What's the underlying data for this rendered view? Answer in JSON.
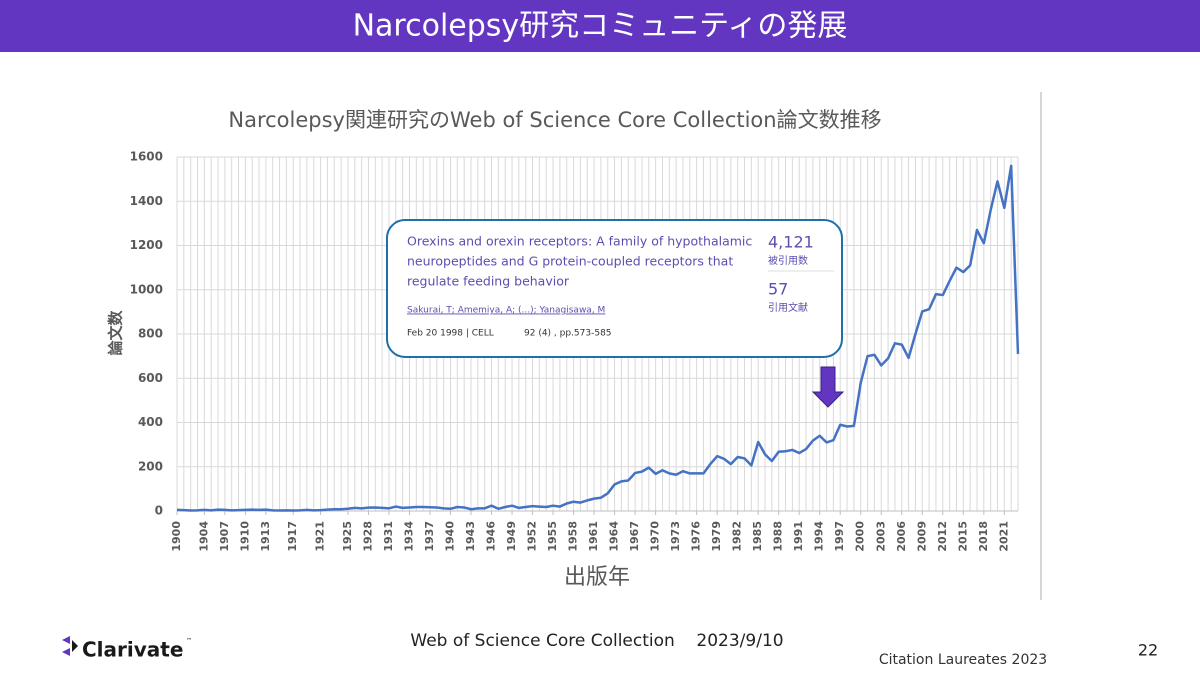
{
  "header": {
    "title": "Narcolepsy研究コミュニティの発展"
  },
  "chart_data": {
    "type": "line",
    "title": "Narcolepsy関連研究のWeb of Science Core Collection論文数推移",
    "x_label": "出版年",
    "y_label": "論文数",
    "x": [
      1900,
      1901,
      1902,
      1903,
      1904,
      1905,
      1906,
      1907,
      1908,
      1909,
      1910,
      1911,
      1912,
      1913,
      1914,
      1915,
      1916,
      1917,
      1918,
      1919,
      1920,
      1921,
      1922,
      1923,
      1924,
      1925,
      1926,
      1927,
      1928,
      1929,
      1930,
      1931,
      1932,
      1933,
      1934,
      1935,
      1936,
      1937,
      1938,
      1939,
      1940,
      1941,
      1942,
      1943,
      1944,
      1945,
      1946,
      1947,
      1948,
      1949,
      1950,
      1951,
      1952,
      1953,
      1954,
      1955,
      1956,
      1957,
      1958,
      1959,
      1960,
      1961,
      1962,
      1963,
      1964,
      1965,
      1966,
      1967,
      1968,
      1969,
      1970,
      1971,
      1972,
      1973,
      1974,
      1975,
      1976,
      1977,
      1978,
      1979,
      1980,
      1981,
      1982,
      1983,
      1984,
      1985,
      1986,
      1987,
      1988,
      1989,
      1990,
      1991,
      1992,
      1993,
      1994,
      1995,
      1996,
      1997,
      1998,
      1999,
      2000,
      2001,
      2002,
      2003,
      2004,
      2005,
      2006,
      2007,
      2008,
      2009,
      2010,
      2011,
      2012,
      2013,
      2014,
      2015,
      2016,
      2017,
      2018,
      2019,
      2020,
      2021,
      2022,
      2023
    ],
    "series": [
      {
        "name": "論文数",
        "color": "#4472c4",
        "values": [
          5,
          4,
          2,
          3,
          5,
          3,
          6,
          5,
          3,
          4,
          5,
          6,
          5,
          6,
          3,
          2,
          3,
          2,
          3,
          5,
          3,
          4,
          6,
          8,
          8,
          10,
          14,
          12,
          15,
          16,
          14,
          12,
          20,
          14,
          16,
          18,
          18,
          17,
          16,
          12,
          10,
          18,
          16,
          8,
          12,
          12,
          24,
          10,
          18,
          24,
          14,
          18,
          22,
          20,
          18,
          24,
          20,
          34,
          42,
          38,
          48,
          56,
          60,
          80,
          120,
          134,
          138,
          172,
          178,
          196,
          168,
          184,
          170,
          164,
          180,
          170,
          170,
          170,
          212,
          248,
          236,
          212,
          244,
          238,
          206,
          312,
          256,
          226,
          268,
          270,
          276,
          262,
          280,
          318,
          340,
          310,
          320,
          390,
          382,
          385,
          580,
          700,
          706,
          658,
          690,
          758,
          752,
          692,
          800,
          902,
          912,
          980,
          976,
          1040,
          1100,
          1080,
          1110,
          1270,
          1210,
          1360,
          1490,
          1370,
          1560,
          710
        ]
      }
    ],
    "xlim": [
      1900,
      2023
    ],
    "xticks": [
      1900,
      1904,
      1907,
      1910,
      1913,
      1917,
      1921,
      1925,
      1928,
      1931,
      1934,
      1937,
      1940,
      1943,
      1946,
      1949,
      1952,
      1955,
      1958,
      1961,
      1964,
      1967,
      1970,
      1973,
      1976,
      1979,
      1982,
      1985,
      1988,
      1991,
      1994,
      1997,
      2000,
      2003,
      2006,
      2009,
      2012,
      2015,
      2018,
      2021
    ],
    "ylim": [
      0,
      1600
    ],
    "yticks": [
      0,
      200,
      400,
      600,
      800,
      1000,
      1200,
      1400,
      1600
    ],
    "grid": true
  },
  "callout": {
    "title_lines": [
      "Orexins and orexin receptors: A family of hypothalamic",
      "neuropeptides and G protein-coupled receptors that",
      "regulate feeding behavior"
    ],
    "authors": "Sakurai, T; Amemiya, A; (...); Yanagisawa, M",
    "date_journal": "Feb 20 1998 | CELL",
    "volume_pages": "92 (4) , pp.573-585",
    "citations": "4,121",
    "citations_label": "被引用数",
    "references": "57",
    "references_label": "引用文献"
  },
  "footer": {
    "logo": "Clarivate",
    "trademark": "™",
    "source": "Web of Science Core Collection    2023/9/10",
    "event": "Citation Laureates 2023",
    "page": "22"
  }
}
